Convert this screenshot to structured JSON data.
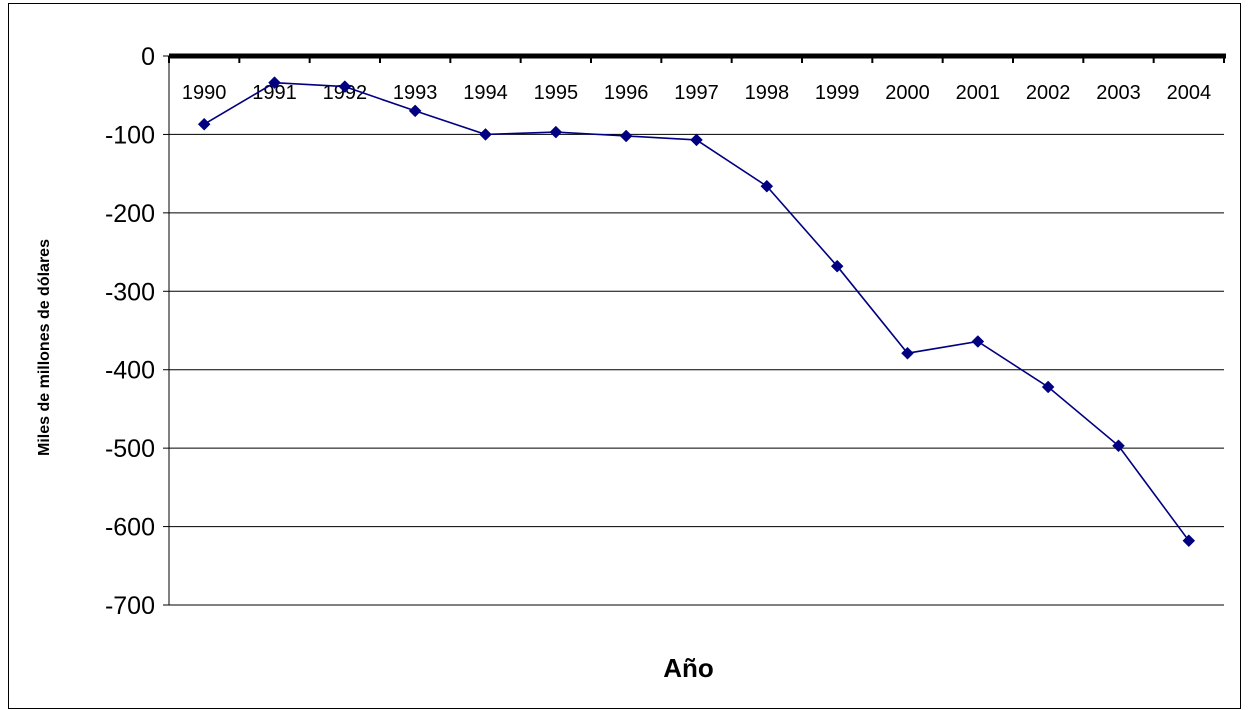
{
  "chart_data": {
    "type": "line",
    "title": "",
    "xlabel": "Año",
    "ylabel": "Miles de millones de dólares",
    "categories": [
      "1990",
      "1991",
      "1992",
      "1993",
      "1994",
      "1995",
      "1996",
      "1997",
      "1998",
      "1999",
      "2000",
      "2001",
      "2002",
      "2003",
      "2004"
    ],
    "series": [
      {
        "values": [
          -87,
          -34,
          -39,
          -70,
          -100,
          -97,
          -102,
          -107,
          -166,
          -268,
          -379,
          -364,
          -422,
          -497,
          -618
        ],
        "color": "#000080",
        "marker": "diamond"
      }
    ],
    "ylim": [
      -700,
      0
    ],
    "yticks": [
      0,
      -100,
      -200,
      -300,
      -400,
      -500,
      -600,
      -700
    ],
    "x_axis_position": "top, at y = 0",
    "grid": true,
    "legend": "none"
  }
}
